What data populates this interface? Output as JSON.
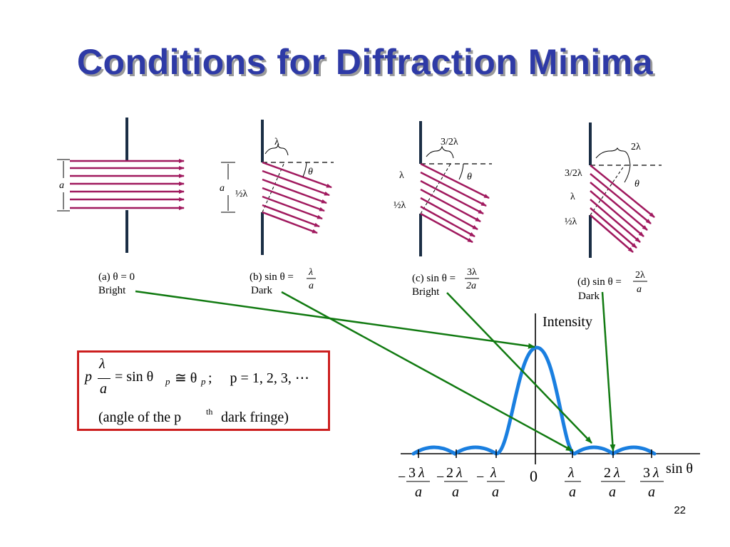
{
  "title": "Conditions for Diffraction Minima",
  "panels": [
    {
      "label": "(a) θ = 0",
      "state": "Bright",
      "aperture": "a"
    },
    {
      "label": "(b) sin θ =",
      "num": "λ",
      "den": "a",
      "state": "Dark",
      "aperture": "a",
      "top_label": "λ",
      "half_label": "½λ",
      "angle": "θ"
    },
    {
      "label": "(c) sin θ =",
      "num": "3λ",
      "den": "2a",
      "state": "Bright",
      "top_label": "3/2λ",
      "mid_label": "λ",
      "half_label": "½λ",
      "angle": "θ"
    },
    {
      "label": "(d) sin θ =",
      "num": "2λ",
      "den": "a",
      "state": "Dark",
      "top_label": "2λ",
      "l1": "3/2λ",
      "l2": "λ",
      "l3": "½λ",
      "angle": "θ"
    }
  ],
  "formula": {
    "p": "p",
    "lambda": "λ",
    "a": "a",
    "rhs": "= sin θ",
    "sub": "p",
    "approx": "≅ θ",
    "sub2": "p",
    "tail": ";     p = 1, 2, 3, ⋯",
    "note_prefix": "(angle of the p",
    "note_sup": "th",
    "note_suffix": " dark fringe)"
  },
  "plot": {
    "y_label": "Intensity",
    "x_label": "sin θ",
    "ticks": [
      "−3λ/a",
      "−2λ/a",
      "−λ/a",
      "0",
      "λ/a",
      "2λ/a",
      "3λ/a"
    ]
  },
  "colors": {
    "title": "#2e3aa6",
    "rays": "#a0195e",
    "curve": "#1a7fe0",
    "arrows": "#117a11",
    "box": "#cc1f1f"
  },
  "page_number": "22"
}
